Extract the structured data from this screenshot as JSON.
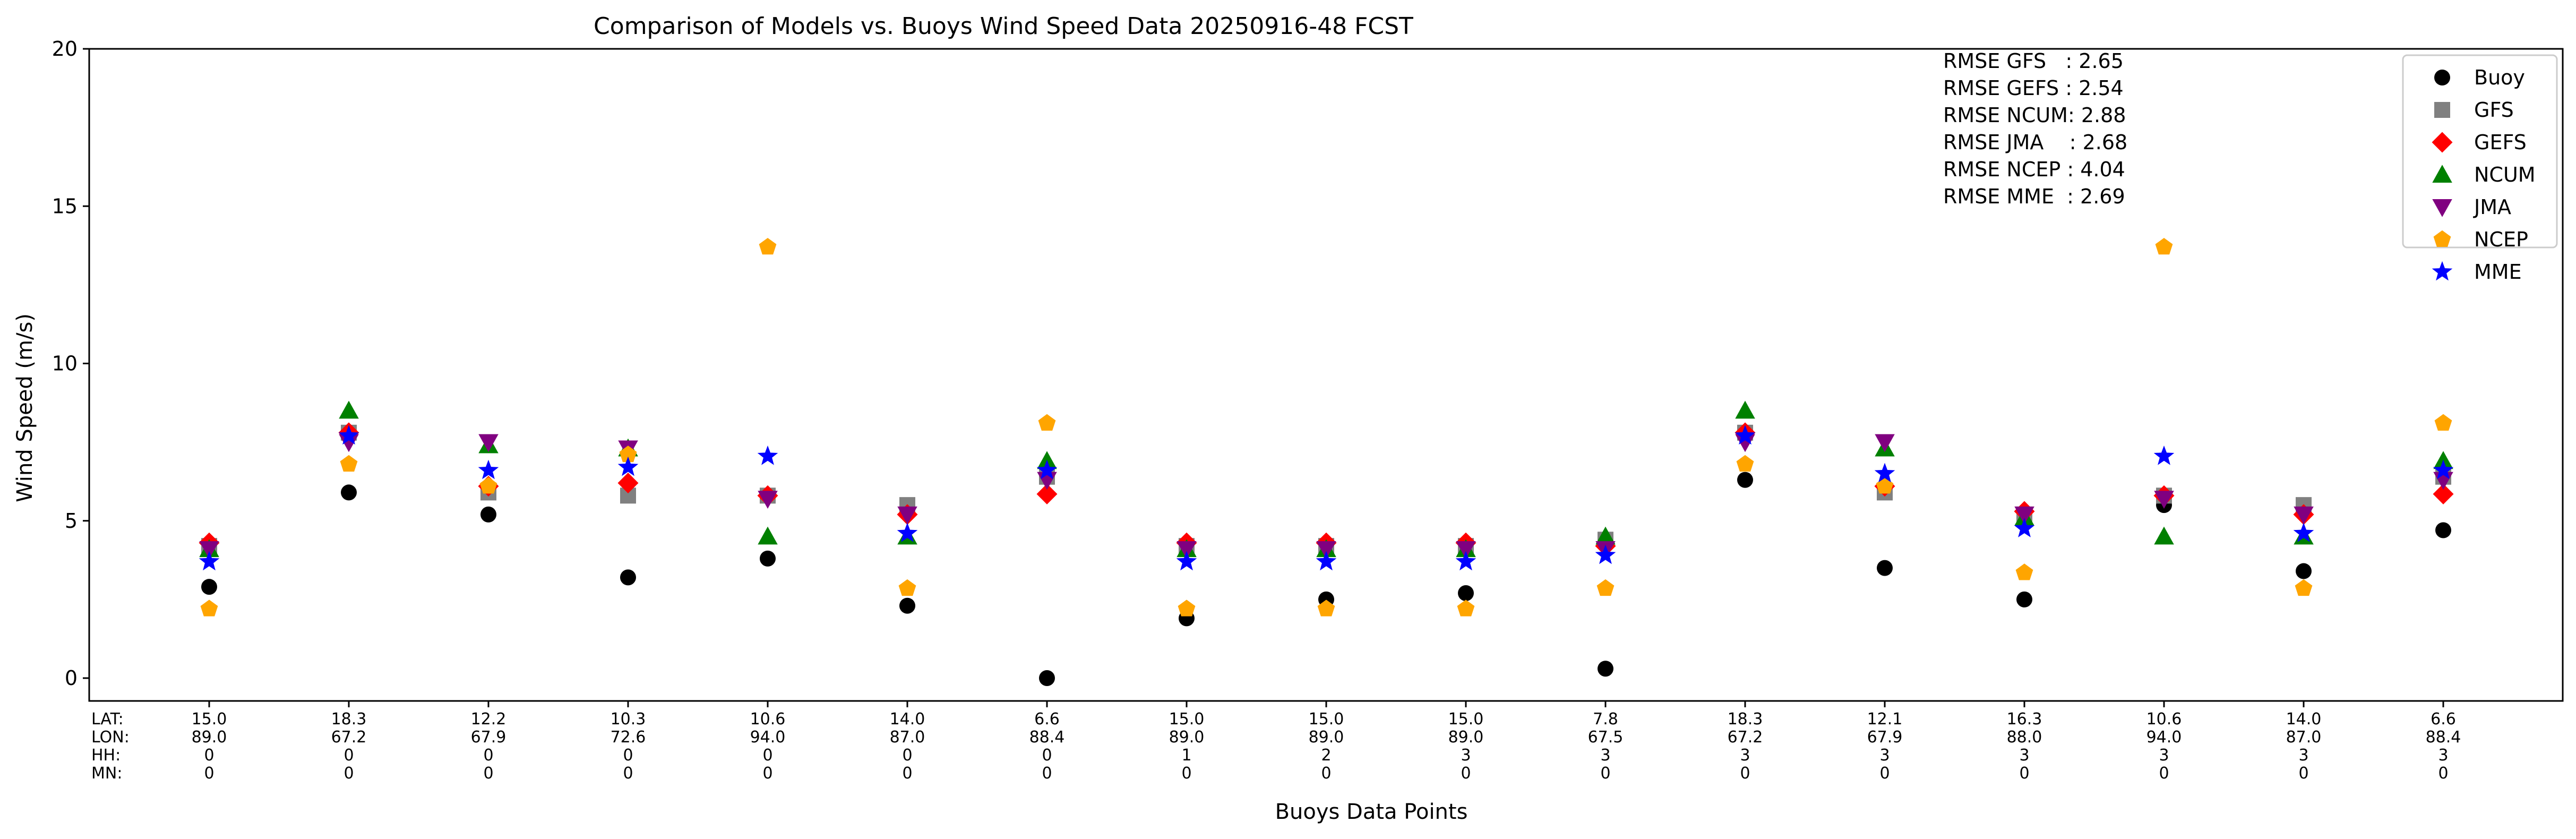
{
  "chart_data": {
    "type": "scatter",
    "title": "Comparison of Models vs. Buoys Wind Speed Data 20250916-48 FCST",
    "xlabel": "Buoys Data Points",
    "ylabel": "Wind Speed (m/s)",
    "ylim": [
      -0.7,
      20
    ],
    "yticks": [
      0,
      5,
      10,
      15,
      20
    ],
    "grid": false,
    "legend_position": "top-right",
    "row_labels": [
      "LAT:",
      "LON:",
      "HH:",
      "MN:"
    ],
    "points": [
      {
        "lat": "15.0",
        "lon": "89.0",
        "hh": "0",
        "mn": "0"
      },
      {
        "lat": "18.3",
        "lon": "67.2",
        "hh": "0",
        "mn": "0"
      },
      {
        "lat": "12.2",
        "lon": "67.9",
        "hh": "0",
        "mn": "0"
      },
      {
        "lat": "10.3",
        "lon": "72.6",
        "hh": "0",
        "mn": "0"
      },
      {
        "lat": "10.6",
        "lon": "94.0",
        "hh": "0",
        "mn": "0"
      },
      {
        "lat": "14.0",
        "lon": "87.0",
        "hh": "0",
        "mn": "0"
      },
      {
        "lat": "6.6",
        "lon": "88.4",
        "hh": "0",
        "mn": "0"
      },
      {
        "lat": "15.0",
        "lon": "89.0",
        "hh": "1",
        "mn": "0"
      },
      {
        "lat": "15.0",
        "lon": "89.0",
        "hh": "2",
        "mn": "0"
      },
      {
        "lat": "15.0",
        "lon": "89.0",
        "hh": "3",
        "mn": "0"
      },
      {
        "lat": "7.8",
        "lon": "67.5",
        "hh": "3",
        "mn": "0"
      },
      {
        "lat": "18.3",
        "lon": "67.2",
        "hh": "3",
        "mn": "0"
      },
      {
        "lat": "12.1",
        "lon": "67.9",
        "hh": "3",
        "mn": "0"
      },
      {
        "lat": "16.3",
        "lon": "88.0",
        "hh": "3",
        "mn": "0"
      },
      {
        "lat": "10.6",
        "lon": "94.0",
        "hh": "3",
        "mn": "0"
      },
      {
        "lat": "14.0",
        "lon": "87.0",
        "hh": "3",
        "mn": "0"
      },
      {
        "lat": "6.6",
        "lon": "88.4",
        "hh": "3",
        "mn": "0"
      }
    ],
    "series": [
      {
        "name": "Buoy",
        "marker": "circle",
        "color": "#000000",
        "values": [
          2.9,
          5.9,
          5.2,
          3.2,
          3.8,
          2.3,
          0.0,
          1.9,
          2.5,
          2.7,
          0.3,
          6.3,
          3.5,
          2.5,
          5.5,
          3.4,
          4.7
        ]
      },
      {
        "name": "GFS",
        "marker": "square",
        "color": "#808080",
        "values": [
          4.2,
          7.8,
          5.9,
          5.8,
          5.8,
          5.5,
          6.4,
          4.2,
          4.2,
          4.2,
          4.4,
          7.8,
          5.9,
          5.2,
          5.8,
          5.5,
          6.4
        ]
      },
      {
        "name": "GEFS",
        "marker": "diamond",
        "color": "#ff0000",
        "values": [
          4.3,
          7.8,
          6.1,
          6.2,
          5.8,
          5.2,
          5.85,
          4.3,
          4.3,
          4.3,
          4.2,
          7.8,
          6.1,
          5.3,
          5.8,
          5.2,
          5.85
        ]
      },
      {
        "name": "NCUM",
        "marker": "triangle-up",
        "color": "#008000",
        "values": [
          4.1,
          8.5,
          7.4,
          7.3,
          4.5,
          4.5,
          6.9,
          4.1,
          4.1,
          4.1,
          4.5,
          8.5,
          7.3,
          5.1,
          4.5,
          4.5,
          6.9
        ]
      },
      {
        "name": "JMA",
        "marker": "triangle-down",
        "color": "#800080",
        "values": [
          4.1,
          7.5,
          7.5,
          7.3,
          5.7,
          5.2,
          6.3,
          4.1,
          4.1,
          4.1,
          4.1,
          7.5,
          7.5,
          5.2,
          5.7,
          5.2,
          6.3
        ]
      },
      {
        "name": "NCEP",
        "marker": "pentagon",
        "color": "#ffa500",
        "values": [
          2.2,
          6.8,
          6.1,
          7.1,
          13.7,
          2.85,
          8.1,
          2.2,
          2.2,
          2.2,
          2.85,
          6.8,
          6.1,
          3.35,
          13.7,
          2.85,
          8.1
        ]
      },
      {
        "name": "MME",
        "marker": "star",
        "color": "#0000ff",
        "values": [
          3.7,
          7.7,
          6.6,
          6.7,
          7.05,
          4.6,
          6.6,
          3.7,
          3.7,
          3.7,
          3.9,
          7.7,
          6.5,
          4.75,
          7.05,
          4.6,
          6.6
        ]
      }
    ],
    "annotations": [
      "RMSE GFS   : 2.65",
      "RMSE GEFS : 2.54",
      "RMSE NCUM: 2.88",
      "RMSE JMA    : 2.68",
      "RMSE NCEP : 4.04",
      "RMSE MME  : 2.69"
    ]
  }
}
